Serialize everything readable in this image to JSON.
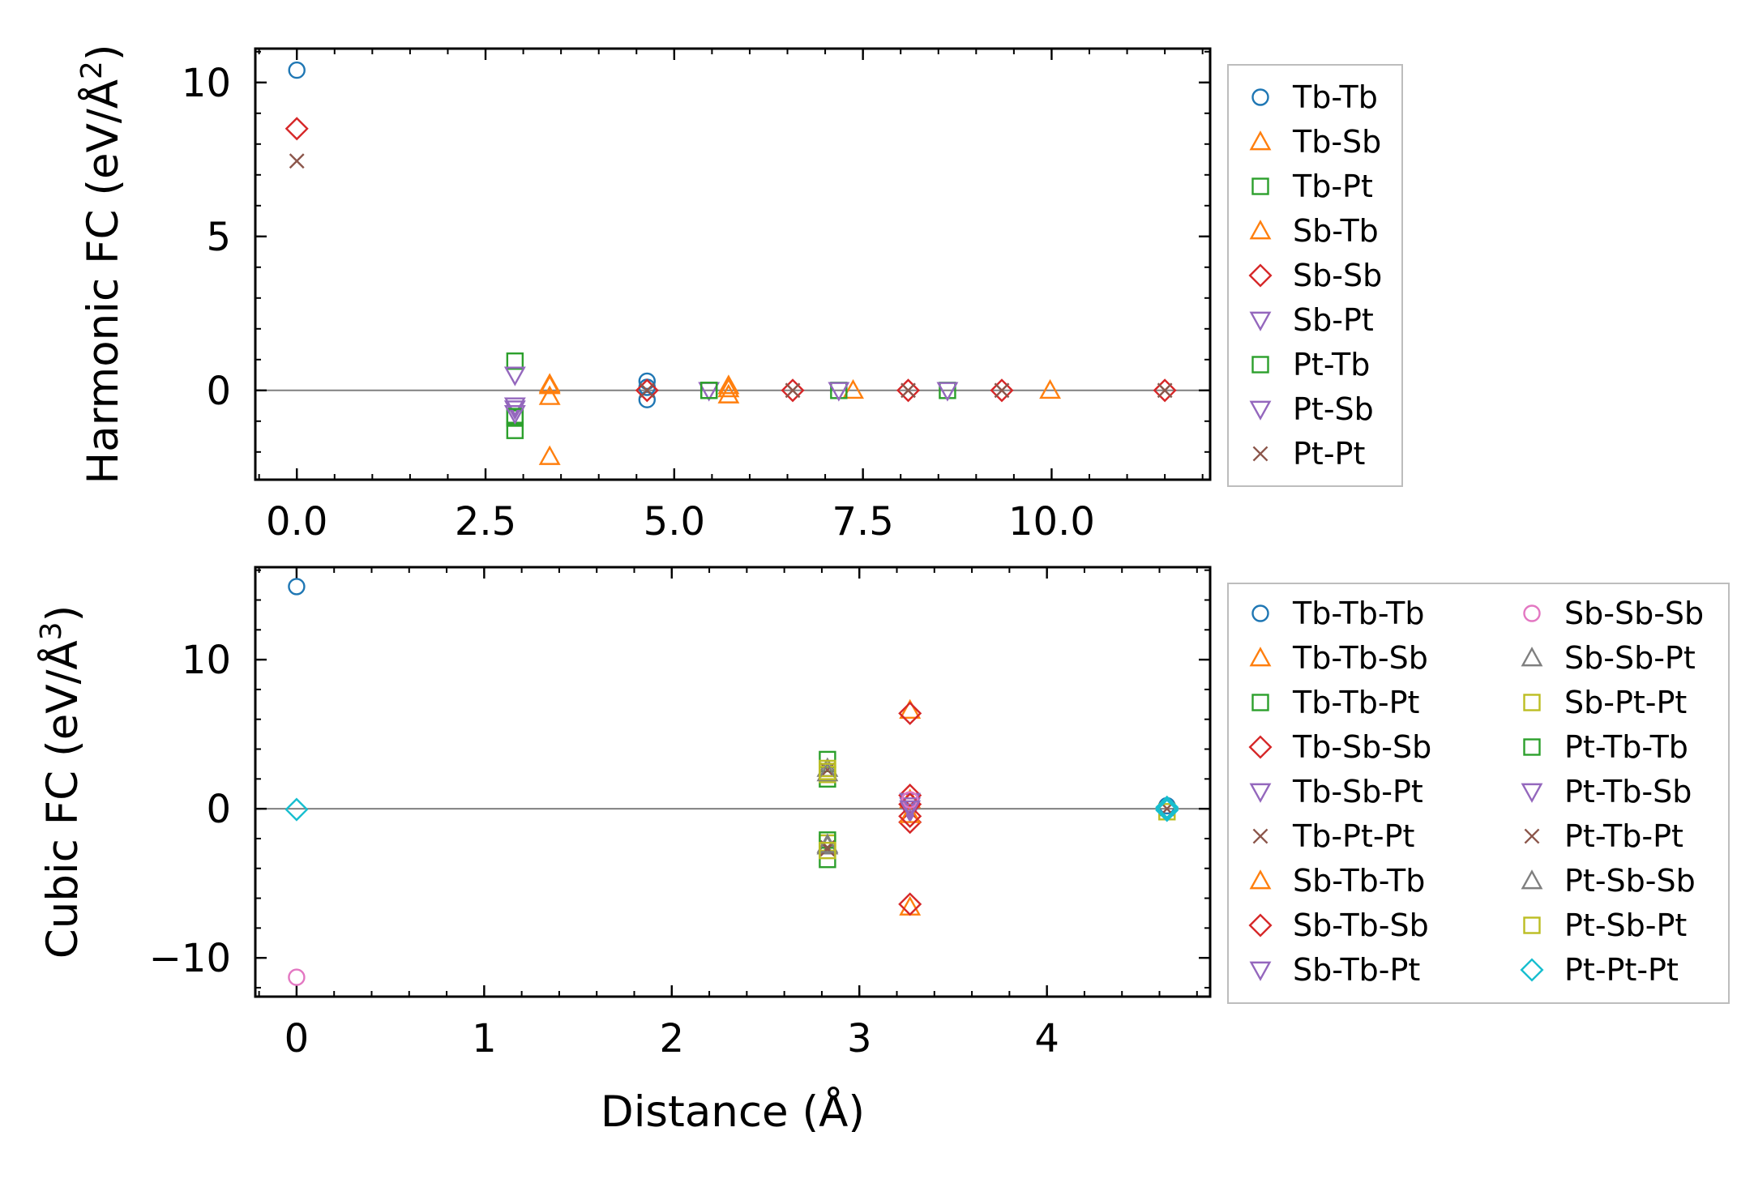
{
  "chart_data": [
    {
      "type": "scatter",
      "xlabel": "",
      "ylabel": "Harmonic FC (eV/Å",
      "ylabel_sup": "2",
      "ylabel_end": ")",
      "xlim": [
        -0.55,
        12.1
      ],
      "ylim": [
        -2.9,
        11.1
      ],
      "xticks": [
        0,
        2.5,
        5,
        7.5,
        10
      ],
      "xtick_labels": [
        "0.0",
        "2.5",
        "5.0",
        "7.5",
        "10.0"
      ],
      "yticks": [
        0,
        5,
        10
      ],
      "ytick_labels": [
        "0",
        "5",
        "10"
      ],
      "hline": 0,
      "legend_position": "right",
      "legend_columns": 1,
      "series": [
        {
          "name": "Tb-Tb",
          "marker": "circle",
          "color": "#1f77b4",
          "points": [
            [
              0,
              10.4
            ],
            [
              4.64,
              0.3
            ],
            [
              4.64,
              -0.3
            ],
            [
              4.64,
              0.1
            ]
          ]
        },
        {
          "name": "Tb-Sb",
          "marker": "triangle-up",
          "color": "#ff7f0e",
          "points": [
            [
              3.35,
              0.2
            ],
            [
              3.35,
              -0.2
            ],
            [
              3.35,
              -2.15
            ],
            [
              5.72,
              0.15
            ],
            [
              5.72,
              -0.15
            ],
            [
              7.37,
              0.0
            ],
            [
              9.98,
              0.0
            ]
          ]
        },
        {
          "name": "Tb-Pt",
          "marker": "square",
          "color": "#2ca02c",
          "points": [
            [
              2.89,
              0.95
            ],
            [
              2.89,
              -0.9
            ],
            [
              2.89,
              -1.3
            ],
            [
              5.46,
              0.0
            ],
            [
              7.18,
              0.0
            ],
            [
              8.62,
              0.0
            ]
          ]
        },
        {
          "name": "Sb-Tb",
          "marker": "triangle-up",
          "color": "#ff7f0e",
          "points": [
            [
              3.35,
              0.15
            ],
            [
              5.72,
              0.05
            ]
          ]
        },
        {
          "name": "Sb-Sb",
          "marker": "diamond",
          "color": "#d62728",
          "points": [
            [
              0,
              8.5
            ],
            [
              4.64,
              0.0
            ],
            [
              6.57,
              0.0
            ],
            [
              8.1,
              0.0
            ],
            [
              9.34,
              0.0
            ],
            [
              11.5,
              0.0
            ]
          ]
        },
        {
          "name": "Sb-Pt",
          "marker": "triangle-down",
          "color": "#9467bd",
          "points": [
            [
              2.89,
              -0.5
            ],
            [
              2.89,
              -0.6
            ],
            [
              5.46,
              0.0
            ],
            [
              7.18,
              0.0
            ],
            [
              8.62,
              0.0
            ]
          ]
        },
        {
          "name": "Pt-Tb",
          "marker": "square",
          "color": "#2ca02c",
          "points": [
            [
              2.89,
              -0.85
            ],
            [
              5.46,
              0.0
            ]
          ]
        },
        {
          "name": "Pt-Sb",
          "marker": "triangle-down",
          "color": "#9467bd",
          "points": [
            [
              2.89,
              0.5
            ],
            [
              2.89,
              -0.75
            ]
          ]
        },
        {
          "name": "Pt-Pt",
          "marker": "x",
          "color": "#8c564b",
          "points": [
            [
              0,
              7.45
            ],
            [
              4.64,
              0.0
            ],
            [
              6.57,
              0.0
            ],
            [
              8.1,
              0.0
            ],
            [
              9.34,
              0.0
            ],
            [
              11.5,
              0.0
            ]
          ]
        }
      ]
    },
    {
      "type": "scatter",
      "xlabel": "Distance (Å)",
      "ylabel": "Cubic FC (eV/Å",
      "ylabel_sup": "3",
      "ylabel_end": ")",
      "xlim": [
        -0.22,
        4.87
      ],
      "ylim": [
        -12.6,
        16.2
      ],
      "xticks": [
        0,
        1,
        2,
        3,
        4
      ],
      "xtick_labels": [
        "0",
        "1",
        "2",
        "3",
        "4"
      ],
      "yticks": [
        -10,
        0,
        10
      ],
      "ytick_labels": [
        "−10",
        "0",
        "10"
      ],
      "hline": 0,
      "legend_position": "right",
      "legend_columns": 2,
      "series": [
        {
          "name": "Tb-Tb-Tb",
          "marker": "circle",
          "color": "#1f77b4",
          "points": [
            [
              0,
              14.9
            ],
            [
              4.64,
              0.2
            ]
          ]
        },
        {
          "name": "Tb-Tb-Sb",
          "marker": "triangle-up",
          "color": "#ff7f0e",
          "points": [
            [
              3.27,
              6.6
            ],
            [
              3.27,
              -6.6
            ],
            [
              3.27,
              0.6
            ]
          ]
        },
        {
          "name": "Tb-Tb-Pt",
          "marker": "square",
          "color": "#2ca02c",
          "points": [
            [
              2.83,
              3.3
            ],
            [
              2.83,
              -3.4
            ],
            [
              2.83,
              2.0
            ]
          ]
        },
        {
          "name": "Tb-Sb-Sb",
          "marker": "diamond",
          "color": "#d62728",
          "points": [
            [
              3.27,
              6.4
            ],
            [
              3.27,
              -6.4
            ],
            [
              3.27,
              0.9
            ],
            [
              3.27,
              -0.9
            ]
          ]
        },
        {
          "name": "Tb-Sb-Pt",
          "marker": "triangle-down",
          "color": "#9467bd",
          "points": [
            [
              3.27,
              0.5
            ],
            [
              3.27,
              -0.2
            ]
          ]
        },
        {
          "name": "Tb-Pt-Pt",
          "marker": "x",
          "color": "#8c564b",
          "points": [
            [
              2.83,
              2.6
            ],
            [
              2.83,
              -2.6
            ]
          ]
        },
        {
          "name": "Sb-Tb-Tb",
          "marker": "triangle-up",
          "color": "#ff7f0e",
          "points": [
            [
              3.27,
              -0.4
            ]
          ]
        },
        {
          "name": "Sb-Tb-Sb",
          "marker": "diamond",
          "color": "#d62728",
          "points": [
            [
              3.27,
              0.3
            ],
            [
              3.27,
              -0.5
            ]
          ]
        },
        {
          "name": "Sb-Tb-Pt",
          "marker": "triangle-down",
          "color": "#9467bd",
          "points": [
            [
              3.27,
              0.2
            ]
          ]
        },
        {
          "name": "Sb-Sb-Sb",
          "marker": "circle",
          "color": "#e377c2",
          "points": [
            [
              0,
              -11.3
            ],
            [
              3.27,
              0.6
            ]
          ]
        },
        {
          "name": "Sb-Sb-Pt",
          "marker": "triangle-up",
          "color": "#7f7f7f",
          "points": [
            [
              2.83,
              2.7
            ],
            [
              2.83,
              -2.5
            ]
          ]
        },
        {
          "name": "Sb-Pt-Pt",
          "marker": "square",
          "color": "#bcbd22",
          "points": [
            [
              2.83,
              2.3
            ],
            [
              2.83,
              -2.3
            ],
            [
              2.83,
              2.7
            ]
          ]
        },
        {
          "name": "Pt-Tb-Tb",
          "marker": "square",
          "color": "#2ca02c",
          "points": [
            [
              2.83,
              -2.1
            ]
          ]
        },
        {
          "name": "Pt-Tb-Sb",
          "marker": "triangle-down",
          "color": "#9467bd",
          "points": [
            [
              3.27,
              0.0
            ]
          ]
        },
        {
          "name": "Pt-Tb-Pt",
          "marker": "x",
          "color": "#8c564b",
          "points": [
            [
              2.83,
              -2.7
            ],
            [
              4.64,
              0.0
            ]
          ]
        },
        {
          "name": "Pt-Sb-Sb",
          "marker": "triangle-up",
          "color": "#7f7f7f",
          "points": [
            [
              2.83,
              2.4
            ],
            [
              2.83,
              -2.4
            ]
          ]
        },
        {
          "name": "Pt-Sb-Pt",
          "marker": "square",
          "color": "#bcbd22",
          "points": [
            [
              2.83,
              2.5
            ],
            [
              2.83,
              -2.8
            ],
            [
              4.64,
              -0.2
            ]
          ]
        },
        {
          "name": "Pt-Pt-Pt",
          "marker": "diamond",
          "color": "#17becf",
          "points": [
            [
              0,
              -0.05
            ],
            [
              4.64,
              0.0
            ],
            [
              4.64,
              0.1
            ],
            [
              4.64,
              -0.1
            ]
          ]
        }
      ]
    }
  ]
}
